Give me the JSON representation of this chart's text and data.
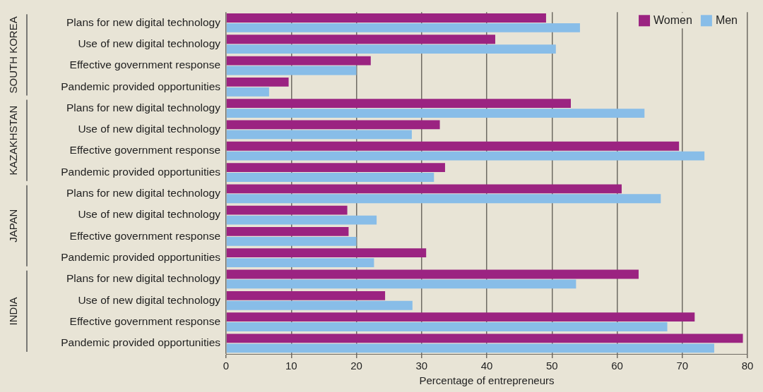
{
  "chart_data": {
    "type": "bar",
    "orientation": "horizontal",
    "xlabel": "Percentage of entrepreneurs",
    "categories": [
      "Plans for new digital technology",
      "Use of new digital technology",
      "Effective government response",
      "Pandemic provided opportunities",
      "Plans for new digital technology",
      "Use of new digital technology",
      "Effective government response",
      "Pandemic provided opportunities",
      "Plans for new digital technology",
      "Use of new digital technology",
      "Effective government response",
      "Pandemic provided opportunities",
      "Plans for new digital technology",
      "Use of new digital technology",
      "Effective government response",
      "Pandemic provided opportunities"
    ],
    "series": [
      {
        "name": "Women",
        "color": "#9b2381",
        "values": [
          49.1,
          41.3,
          22.2,
          9.6,
          52.9,
          32.8,
          69.5,
          33.6,
          60.7,
          18.6,
          18.8,
          30.7,
          63.3,
          24.4,
          71.9,
          79.3
        ]
      },
      {
        "name": "Men",
        "color": "#88bde8",
        "values": [
          54.3,
          50.6,
          20.0,
          6.6,
          64.2,
          28.5,
          73.4,
          31.9,
          66.7,
          23.1,
          20.0,
          22.7,
          53.7,
          28.6,
          67.7,
          74.9
        ]
      }
    ],
    "annotations": [
      "SOUTH KOREA",
      "KAZAKHSTAN",
      "JAPAN",
      "INDIA"
    ],
    "xlim": [
      0,
      80
    ],
    "xticks": [
      0,
      10,
      20,
      30,
      40,
      50,
      60,
      70,
      80
    ],
    "grid": "x",
    "legend": "top right"
  }
}
